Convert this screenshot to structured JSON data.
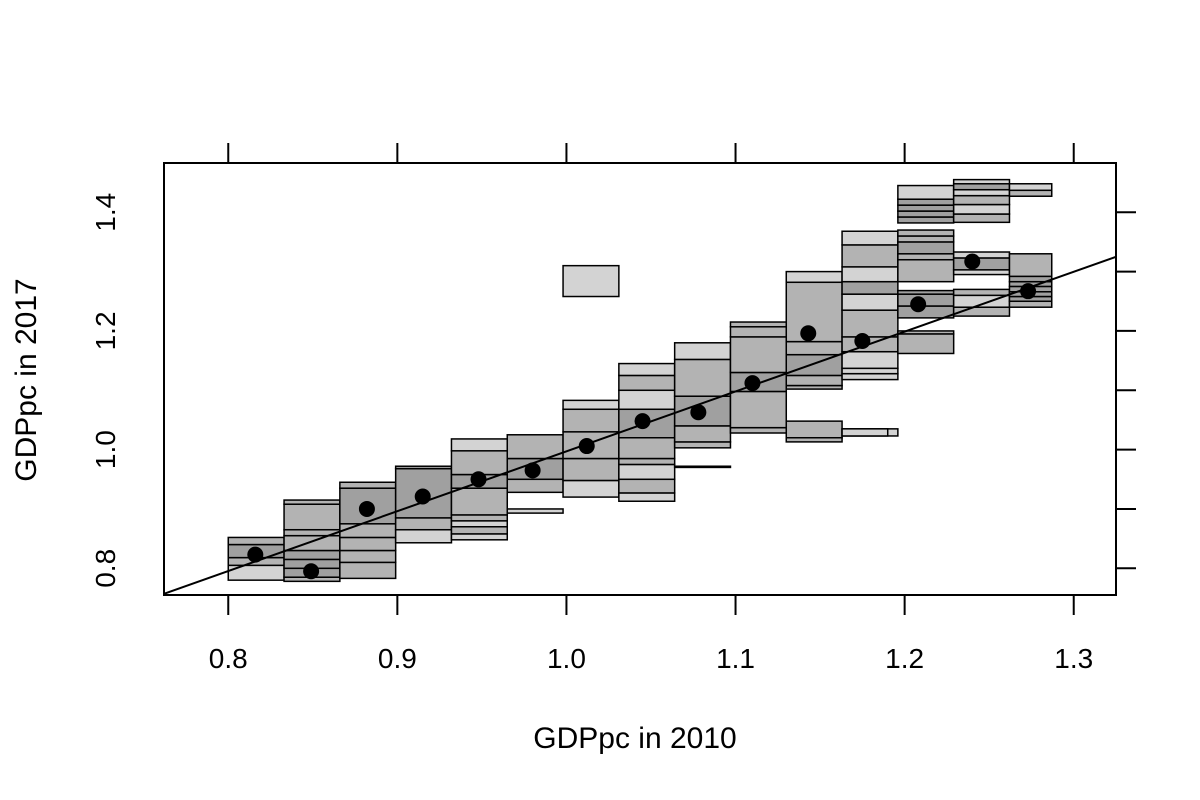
{
  "chart_data": {
    "type": "mobility-plot",
    "title": "",
    "xlabel": "GDPpc in 2010",
    "ylabel": "GDPpc in 2017",
    "xlim": [
      0.762,
      1.325
    ],
    "ylim": [
      0.755,
      1.483
    ],
    "x_ticks": [
      0.8,
      0.9,
      1.0,
      1.1,
      1.2,
      1.3
    ],
    "x_tick_labels": [
      "0.8",
      "0.9",
      "1.0",
      "1.1",
      "1.2",
      "1.3"
    ],
    "y_ticks": [
      0.8,
      0.9,
      1.0,
      1.1,
      1.2,
      1.3,
      1.4
    ],
    "y_tick_labels": [
      "0.8",
      "",
      "1.0",
      "",
      "1.2",
      "",
      "1.4"
    ],
    "colors": {
      "light": "#d3d3d3",
      "medium": "#b3b3b3",
      "dark": "#a0a0a0",
      "point": "#000000",
      "line": "#000000"
    },
    "fit_line": {
      "x0": 0.762,
      "y0": 0.757,
      "x1": 1.325,
      "y1": 1.325
    },
    "bins": [
      {
        "x0": 0.8,
        "x1": 0.833,
        "rects": [
          {
            "y0": 0.78,
            "y1": 0.805,
            "shade": "light"
          },
          {
            "y0": 0.805,
            "y1": 0.818,
            "shade": "medium"
          },
          {
            "y0": 0.818,
            "y1": 0.84,
            "shade": "dark"
          },
          {
            "y0": 0.84,
            "y1": 0.852,
            "shade": "medium"
          }
        ]
      },
      {
        "x0": 0.833,
        "x1": 0.866,
        "rects": [
          {
            "y0": 0.778,
            "y1": 0.785,
            "shade": "medium"
          },
          {
            "y0": 0.785,
            "y1": 0.8,
            "shade": "dark"
          },
          {
            "y0": 0.8,
            "y1": 0.815,
            "shade": "dark"
          },
          {
            "y0": 0.815,
            "y1": 0.83,
            "shade": "dark"
          },
          {
            "y0": 0.83,
            "y1": 0.855,
            "shade": "medium"
          },
          {
            "y0": 0.855,
            "y1": 0.865,
            "shade": "medium"
          },
          {
            "y0": 0.865,
            "y1": 0.908,
            "shade": "medium"
          },
          {
            "y0": 0.908,
            "y1": 0.915,
            "shade": "medium"
          }
        ]
      },
      {
        "x0": 0.866,
        "x1": 0.899,
        "rects": [
          {
            "y0": 0.783,
            "y1": 0.81,
            "shade": "medium"
          },
          {
            "y0": 0.81,
            "y1": 0.83,
            "shade": "medium"
          },
          {
            "y0": 0.83,
            "y1": 0.852,
            "shade": "medium"
          },
          {
            "y0": 0.852,
            "y1": 0.875,
            "shade": "medium"
          },
          {
            "y0": 0.875,
            "y1": 0.935,
            "shade": "dark"
          },
          {
            "y0": 0.935,
            "y1": 0.945,
            "shade": "medium"
          }
        ]
      },
      {
        "x0": 0.899,
        "x1": 0.932,
        "rects": [
          {
            "y0": 0.843,
            "y1": 0.865,
            "shade": "light"
          },
          {
            "y0": 0.865,
            "y1": 0.885,
            "shade": "medium"
          },
          {
            "y0": 0.885,
            "y1": 0.968,
            "shade": "dark"
          },
          {
            "y0": 0.968,
            "y1": 0.972,
            "shade": "medium"
          }
        ]
      },
      {
        "x0": 0.932,
        "x1": 0.965,
        "rects": [
          {
            "y0": 0.848,
            "y1": 0.858,
            "shade": "light"
          },
          {
            "y0": 0.858,
            "y1": 0.87,
            "shade": "medium"
          },
          {
            "y0": 0.87,
            "y1": 0.88,
            "shade": "light"
          },
          {
            "y0": 0.88,
            "y1": 0.89,
            "shade": "medium"
          },
          {
            "y0": 0.89,
            "y1": 0.935,
            "shade": "medium"
          },
          {
            "y0": 0.935,
            "y1": 0.958,
            "shade": "dark"
          },
          {
            "y0": 0.958,
            "y1": 0.998,
            "shade": "medium"
          },
          {
            "y0": 0.998,
            "y1": 1.018,
            "shade": "light"
          }
        ]
      },
      {
        "x0": 0.965,
        "x1": 0.998,
        "rects": [
          {
            "y0": 0.893,
            "y1": 0.9,
            "shade": "light"
          },
          {
            "y0": 0.928,
            "y1": 0.95,
            "shade": "medium"
          },
          {
            "y0": 0.95,
            "y1": 0.985,
            "shade": "dark"
          },
          {
            "y0": 0.985,
            "y1": 1.025,
            "shade": "medium"
          }
        ]
      },
      {
        "x0": 0.998,
        "x1": 1.031,
        "rects": [
          {
            "y0": 0.92,
            "y1": 0.948,
            "shade": "light"
          },
          {
            "y0": 0.948,
            "y1": 0.985,
            "shade": "medium"
          },
          {
            "y0": 0.985,
            "y1": 1.03,
            "shade": "medium"
          },
          {
            "y0": 1.03,
            "y1": 1.068,
            "shade": "medium"
          },
          {
            "y0": 1.068,
            "y1": 1.083,
            "shade": "light"
          },
          {
            "y0": 1.258,
            "y1": 1.31,
            "shade": "light"
          }
        ]
      },
      {
        "x0": 1.031,
        "x1": 1.064,
        "rects": [
          {
            "y0": 0.913,
            "y1": 0.927,
            "shade": "light"
          },
          {
            "y0": 0.927,
            "y1": 0.95,
            "shade": "medium"
          },
          {
            "y0": 0.95,
            "y1": 0.975,
            "shade": "light"
          },
          {
            "y0": 0.975,
            "y1": 0.985,
            "shade": "medium"
          },
          {
            "y0": 0.985,
            "y1": 1.02,
            "shade": "medium"
          },
          {
            "y0": 1.02,
            "y1": 1.068,
            "shade": "dark"
          },
          {
            "y0": 1.068,
            "y1": 1.1,
            "shade": "light"
          },
          {
            "y0": 1.1,
            "y1": 1.125,
            "shade": "medium"
          },
          {
            "y0": 1.125,
            "y1": 1.145,
            "shade": "light"
          }
        ]
      },
      {
        "x0": 1.064,
        "x1": 1.097,
        "rects": [
          {
            "y0": 1.003,
            "y1": 1.013,
            "shade": "medium"
          },
          {
            "y0": 1.013,
            "y1": 1.04,
            "shade": "medium"
          },
          {
            "y0": 1.04,
            "y1": 1.09,
            "shade": "dark"
          },
          {
            "y0": 1.09,
            "y1": 1.152,
            "shade": "medium"
          },
          {
            "y0": 1.152,
            "y1": 1.18,
            "shade": "light"
          }
        ]
      },
      {
        "x0": 1.097,
        "x1": 1.13,
        "rects": [
          {
            "y0": 1.028,
            "y1": 1.037,
            "shade": "medium"
          },
          {
            "y0": 1.037,
            "y1": 1.098,
            "shade": "medium"
          },
          {
            "y0": 1.098,
            "y1": 1.13,
            "shade": "dark"
          },
          {
            "y0": 1.13,
            "y1": 1.19,
            "shade": "medium"
          },
          {
            "y0": 1.19,
            "y1": 1.207,
            "shade": "medium"
          },
          {
            "y0": 1.207,
            "y1": 1.215,
            "shade": "medium"
          }
        ]
      },
      {
        "x0": 1.13,
        "x1": 1.163,
        "rects": [
          {
            "y0": 1.013,
            "y1": 1.02,
            "shade": "medium"
          },
          {
            "y0": 1.02,
            "y1": 1.048,
            "shade": "medium"
          },
          {
            "y0": 1.102,
            "y1": 1.108,
            "shade": "medium"
          },
          {
            "y0": 1.108,
            "y1": 1.125,
            "shade": "medium"
          },
          {
            "y0": 1.125,
            "y1": 1.16,
            "shade": "dark"
          },
          {
            "y0": 1.16,
            "y1": 1.182,
            "shade": "medium"
          },
          {
            "y0": 1.182,
            "y1": 1.282,
            "shade": "medium"
          },
          {
            "y0": 1.282,
            "y1": 1.3,
            "shade": "light"
          }
        ]
      },
      {
        "x0": 1.163,
        "x1": 1.196,
        "rects": [
          {
            "y0": 1.023,
            "y1": 1.035,
            "shade": "light"
          },
          {
            "y0": 1.118,
            "y1": 1.128,
            "shade": "light"
          },
          {
            "y0": 1.128,
            "y1": 1.137,
            "shade": "light"
          },
          {
            "y0": 1.137,
            "y1": 1.165,
            "shade": "light"
          },
          {
            "y0": 1.165,
            "y1": 1.19,
            "shade": "medium"
          },
          {
            "y0": 1.19,
            "y1": 1.235,
            "shade": "medium"
          },
          {
            "y0": 1.235,
            "y1": 1.262,
            "shade": "light"
          },
          {
            "y0": 1.262,
            "y1": 1.283,
            "shade": "dark"
          },
          {
            "y0": 1.283,
            "y1": 1.308,
            "shade": "light"
          },
          {
            "y0": 1.308,
            "y1": 1.345,
            "shade": "medium"
          },
          {
            "y0": 1.345,
            "y1": 1.368,
            "shade": "light"
          }
        ]
      },
      {
        "x0": 1.196,
        "x1": 1.229,
        "rects": [
          {
            "y0": 1.162,
            "y1": 1.195,
            "shade": "medium"
          },
          {
            "y0": 1.195,
            "y1": 1.2,
            "shade": "medium"
          },
          {
            "y0": 1.222,
            "y1": 1.242,
            "shade": "dark"
          },
          {
            "y0": 1.242,
            "y1": 1.262,
            "shade": "dark"
          },
          {
            "y0": 1.262,
            "y1": 1.268,
            "shade": "dark"
          },
          {
            "y0": 1.283,
            "y1": 1.32,
            "shade": "medium"
          },
          {
            "y0": 1.32,
            "y1": 1.33,
            "shade": "medium"
          },
          {
            "y0": 1.33,
            "y1": 1.35,
            "shade": "dark"
          },
          {
            "y0": 1.35,
            "y1": 1.36,
            "shade": "medium"
          },
          {
            "y0": 1.36,
            "y1": 1.37,
            "shade": "medium"
          },
          {
            "y0": 1.382,
            "y1": 1.392,
            "shade": "dark"
          },
          {
            "y0": 1.392,
            "y1": 1.402,
            "shade": "dark"
          },
          {
            "y0": 1.402,
            "y1": 1.412,
            "shade": "dark"
          },
          {
            "y0": 1.412,
            "y1": 1.422,
            "shade": "dark"
          },
          {
            "y0": 1.422,
            "y1": 1.445,
            "shade": "light"
          }
        ]
      },
      {
        "x0": 1.229,
        "x1": 1.262,
        "rects": [
          {
            "y0": 1.225,
            "y1": 1.24,
            "shade": "medium"
          },
          {
            "y0": 1.24,
            "y1": 1.26,
            "shade": "light"
          },
          {
            "y0": 1.26,
            "y1": 1.27,
            "shade": "medium"
          },
          {
            "y0": 1.295,
            "y1": 1.303,
            "shade": "light"
          },
          {
            "y0": 1.303,
            "y1": 1.323,
            "shade": "dark"
          },
          {
            "y0": 1.323,
            "y1": 1.333,
            "shade": "light"
          },
          {
            "y0": 1.383,
            "y1": 1.397,
            "shade": "medium"
          },
          {
            "y0": 1.397,
            "y1": 1.413,
            "shade": "light"
          },
          {
            "y0": 1.413,
            "y1": 1.428,
            "shade": "medium"
          },
          {
            "y0": 1.428,
            "y1": 1.438,
            "shade": "light"
          },
          {
            "y0": 1.438,
            "y1": 1.448,
            "shade": "dark"
          },
          {
            "y0": 1.448,
            "y1": 1.455,
            "shade": "light"
          }
        ]
      },
      {
        "x0": 1.262,
        "x1": 1.287,
        "rects": [
          {
            "y0": 1.24,
            "y1": 1.25,
            "shade": "medium"
          },
          {
            "y0": 1.25,
            "y1": 1.258,
            "shade": "dark"
          },
          {
            "y0": 1.258,
            "y1": 1.266,
            "shade": "dark"
          },
          {
            "y0": 1.266,
            "y1": 1.275,
            "shade": "dark"
          },
          {
            "y0": 1.275,
            "y1": 1.283,
            "shade": "dark"
          },
          {
            "y0": 1.283,
            "y1": 1.292,
            "shade": "dark"
          },
          {
            "y0": 1.292,
            "y1": 1.33,
            "shade": "medium"
          },
          {
            "y0": 1.427,
            "y1": 1.437,
            "shade": "medium"
          },
          {
            "y0": 1.437,
            "y1": 1.448,
            "shade": "light"
          }
        ]
      }
    ],
    "extra_rects": [
      {
        "x0": 1.064,
        "x1": 1.097,
        "y0": 0.97,
        "y1": 0.972,
        "shade": "light"
      },
      {
        "x0": 1.163,
        "x1": 1.19,
        "y0": 1.023,
        "y1": 1.035,
        "shade": "light"
      }
    ],
    "points": [
      {
        "x": 0.816,
        "y": 0.823
      },
      {
        "x": 0.849,
        "y": 0.795
      },
      {
        "x": 0.882,
        "y": 0.9
      },
      {
        "x": 0.915,
        "y": 0.921
      },
      {
        "x": 0.948,
        "y": 0.95
      },
      {
        "x": 0.98,
        "y": 0.965
      },
      {
        "x": 1.012,
        "y": 1.006
      },
      {
        "x": 1.045,
        "y": 1.048
      },
      {
        "x": 1.078,
        "y": 1.063
      },
      {
        "x": 1.11,
        "y": 1.112
      },
      {
        "x": 1.143,
        "y": 1.196
      },
      {
        "x": 1.175,
        "y": 1.183
      },
      {
        "x": 1.208,
        "y": 1.245
      },
      {
        "x": 1.24,
        "y": 1.317
      },
      {
        "x": 1.273,
        "y": 1.267
      }
    ]
  }
}
